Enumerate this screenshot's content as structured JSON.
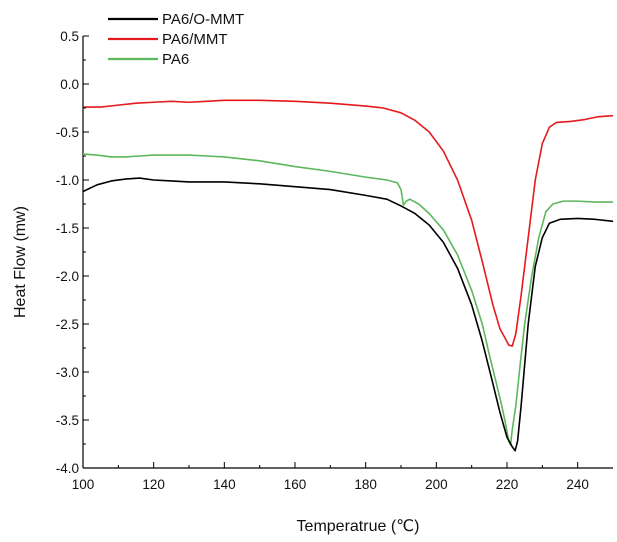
{
  "chart_data": {
    "type": "line",
    "title": "",
    "xlabel": "Temperatrue (℃)",
    "ylabel": "Heat Flow (mw)",
    "xlim": [
      100,
      250
    ],
    "ylim": [
      -4.0,
      0.5
    ],
    "x_ticks": [
      "100",
      "120",
      "140",
      "160",
      "180",
      "200",
      "220",
      "240"
    ],
    "y_ticks": [
      "0.5",
      "0.0",
      "-0.5",
      "-1.0",
      "-1.5",
      "-2.0",
      "-2.5",
      "-3.0",
      "-3.5",
      "-4.0"
    ],
    "grid": false,
    "legend_position": "top-left",
    "series": [
      {
        "name": "PA6/O-MMT",
        "color": "#000000",
        "points": [
          [
            100,
            -1.12
          ],
          [
            104,
            -1.05
          ],
          [
            108,
            -1.01
          ],
          [
            112,
            -0.99
          ],
          [
            116,
            -0.98
          ],
          [
            120,
            -1.0
          ],
          [
            125,
            -1.01
          ],
          [
            130,
            -1.02
          ],
          [
            135,
            -1.02
          ],
          [
            140,
            -1.02
          ],
          [
            150,
            -1.04
          ],
          [
            160,
            -1.07
          ],
          [
            170,
            -1.1
          ],
          [
            180,
            -1.16
          ],
          [
            186,
            -1.2
          ],
          [
            190,
            -1.27
          ],
          [
            194,
            -1.35
          ],
          [
            198,
            -1.47
          ],
          [
            202,
            -1.65
          ],
          [
            206,
            -1.92
          ],
          [
            210,
            -2.3
          ],
          [
            213,
            -2.68
          ],
          [
            216,
            -3.12
          ],
          [
            218,
            -3.42
          ],
          [
            220,
            -3.68
          ],
          [
            221.5,
            -3.78
          ],
          [
            222.3,
            -3.82
          ],
          [
            223,
            -3.72
          ],
          [
            224,
            -3.35
          ],
          [
            226,
            -2.5
          ],
          [
            228,
            -1.9
          ],
          [
            230,
            -1.6
          ],
          [
            232,
            -1.45
          ],
          [
            235,
            -1.41
          ],
          [
            240,
            -1.4
          ],
          [
            245,
            -1.41
          ],
          [
            250,
            -1.43
          ]
        ]
      },
      {
        "name": "PA6/MMT",
        "color": "#e41a1c",
        "points": [
          [
            100,
            -0.24
          ],
          [
            105,
            -0.24
          ],
          [
            110,
            -0.22
          ],
          [
            115,
            -0.2
          ],
          [
            120,
            -0.19
          ],
          [
            125,
            -0.18
          ],
          [
            130,
            -0.19
          ],
          [
            135,
            -0.18
          ],
          [
            140,
            -0.17
          ],
          [
            150,
            -0.17
          ],
          [
            160,
            -0.18
          ],
          [
            170,
            -0.2
          ],
          [
            180,
            -0.23
          ],
          [
            185,
            -0.25
          ],
          [
            190,
            -0.3
          ],
          [
            194,
            -0.38
          ],
          [
            198,
            -0.5
          ],
          [
            202,
            -0.7
          ],
          [
            206,
            -1.0
          ],
          [
            210,
            -1.42
          ],
          [
            213,
            -1.85
          ],
          [
            216,
            -2.3
          ],
          [
            218,
            -2.55
          ],
          [
            219.5,
            -2.65
          ],
          [
            220.5,
            -2.72
          ],
          [
            221.5,
            -2.73
          ],
          [
            222.5,
            -2.6
          ],
          [
            224,
            -2.2
          ],
          [
            226,
            -1.6
          ],
          [
            228,
            -1.0
          ],
          [
            230,
            -0.62
          ],
          [
            232,
            -0.45
          ],
          [
            234,
            -0.4
          ],
          [
            238,
            -0.39
          ],
          [
            242,
            -0.37
          ],
          [
            246,
            -0.34
          ],
          [
            250,
            -0.33
          ]
        ]
      },
      {
        "name": "PA6",
        "color": "#5cb85c",
        "points": [
          [
            100,
            -0.73
          ],
          [
            104,
            -0.74
          ],
          [
            108,
            -0.76
          ],
          [
            112,
            -0.76
          ],
          [
            116,
            -0.75
          ],
          [
            120,
            -0.74
          ],
          [
            125,
            -0.74
          ],
          [
            130,
            -0.74
          ],
          [
            135,
            -0.75
          ],
          [
            140,
            -0.76
          ],
          [
            150,
            -0.8
          ],
          [
            160,
            -0.86
          ],
          [
            170,
            -0.91
          ],
          [
            180,
            -0.97
          ],
          [
            186,
            -1.0
          ],
          [
            189,
            -1.03
          ],
          [
            190,
            -1.1
          ],
          [
            190.7,
            -1.26
          ],
          [
            191.5,
            -1.22
          ],
          [
            192.5,
            -1.2
          ],
          [
            195,
            -1.25
          ],
          [
            198,
            -1.35
          ],
          [
            202,
            -1.52
          ],
          [
            206,
            -1.78
          ],
          [
            210,
            -2.15
          ],
          [
            213,
            -2.5
          ],
          [
            215,
            -2.82
          ],
          [
            217,
            -3.12
          ],
          [
            218.5,
            -3.35
          ],
          [
            219.5,
            -3.52
          ],
          [
            220.5,
            -3.72
          ],
          [
            221,
            -3.76
          ],
          [
            221.5,
            -3.6
          ],
          [
            222.5,
            -3.35
          ],
          [
            223.5,
            -3.0
          ],
          [
            225,
            -2.5
          ],
          [
            227,
            -2.0
          ],
          [
            229,
            -1.6
          ],
          [
            231,
            -1.33
          ],
          [
            233,
            -1.25
          ],
          [
            236,
            -1.22
          ],
          [
            240,
            -1.22
          ],
          [
            245,
            -1.23
          ],
          [
            250,
            -1.23
          ]
        ]
      }
    ]
  }
}
